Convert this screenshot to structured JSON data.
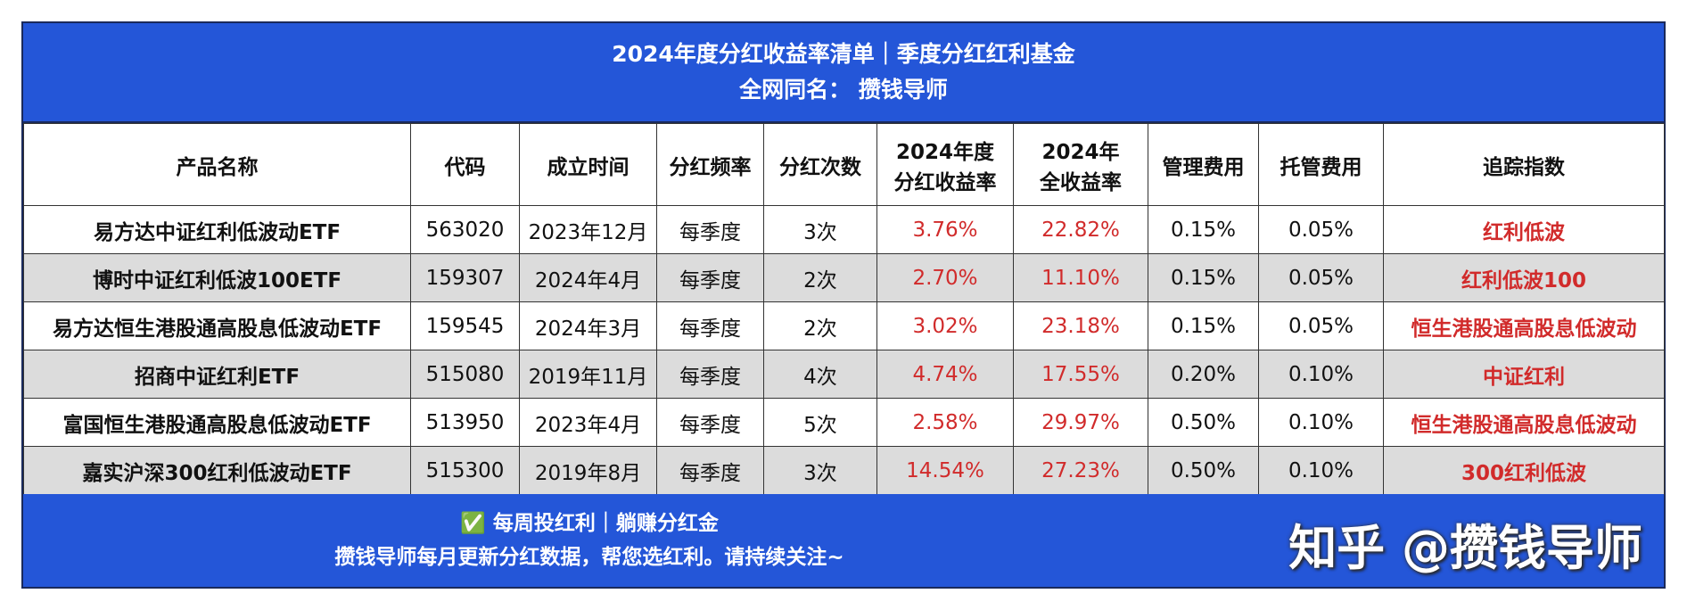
{
  "header": {
    "title": "2024年度分红收益率清单｜季度分红红利基金",
    "subtitle": "全网同名： 攒钱导师"
  },
  "table": {
    "columns": [
      [
        "产品名称"
      ],
      [
        "代码"
      ],
      [
        "成立时间"
      ],
      [
        "分红频率"
      ],
      [
        "分红次数"
      ],
      [
        "2024年度",
        "分红收益率"
      ],
      [
        "2024年",
        "全收益率"
      ],
      [
        "管理费用"
      ],
      [
        "托管费用"
      ],
      [
        "追踪指数"
      ]
    ],
    "rows": [
      [
        "易方达中证红利低波动ETF",
        "563020",
        "2023年12月",
        "每季度",
        "3次",
        "3.76%",
        "22.82%",
        "0.15%",
        "0.05%",
        "红利低波"
      ],
      [
        "博时中证红利低波100ETF",
        "159307",
        "2024年4月",
        "每季度",
        "2次",
        "2.70%",
        "11.10%",
        "0.15%",
        "0.05%",
        "红利低波100"
      ],
      [
        "易方达恒生港股通高股息低波动ETF",
        "159545",
        "2024年3月",
        "每季度",
        "2次",
        "3.02%",
        "23.18%",
        "0.15%",
        "0.05%",
        "恒生港股通高股息低波动"
      ],
      [
        "招商中证红利ETF",
        "515080",
        "2019年11月",
        "每季度",
        "4次",
        "4.74%",
        "17.55%",
        "0.20%",
        "0.10%",
        "中证红利"
      ],
      [
        "富国恒生港股通高股息低波动ETF",
        "513950",
        "2023年4月",
        "每季度",
        "5次",
        "2.58%",
        "29.97%",
        "0.50%",
        "0.10%",
        "恒生港股通高股息低波动"
      ],
      [
        "嘉实沪深300红利低波动ETF",
        "515300",
        "2019年8月",
        "每季度",
        "3次",
        "14.54%",
        "27.23%",
        "0.50%",
        "0.10%",
        "300红利低波"
      ]
    ]
  },
  "footer": {
    "lines": [
      "✅ 每周投红利｜躺赚分红金",
      "攒钱导师每月更新分红数据，帮您选红利。请持续关注~"
    ],
    "watermark": "知乎 @攒钱导师"
  }
}
